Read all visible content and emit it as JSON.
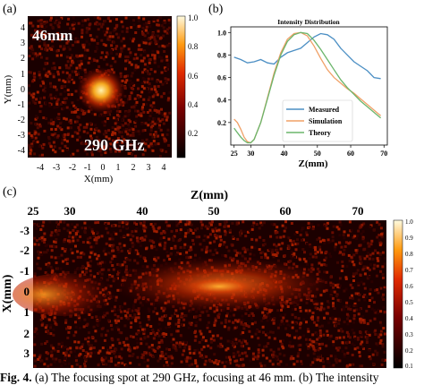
{
  "panels": {
    "a": {
      "label": "(a)",
      "distance": "46mm",
      "frequency": "290 GHz",
      "xlabel": "X(mm)",
      "ylabel": "Y(mm)",
      "xticks": [
        "-4",
        "-3",
        "-2",
        "-1",
        "0",
        "1",
        "2",
        "3",
        "4"
      ],
      "yticks": [
        "4",
        "3",
        "2",
        "1",
        "0",
        "-1",
        "-2",
        "-3",
        "-4"
      ],
      "colorbar_ticks": [
        "1.0",
        "0.8",
        "0.6",
        "0.4",
        "0.2"
      ]
    },
    "b": {
      "label": "(b)"
    },
    "c": {
      "label": "(c)",
      "xlabel": "Z(mm)",
      "ylabel": "X(mm)",
      "xticks": [
        "25",
        "30",
        "40",
        "50",
        "60",
        "70"
      ],
      "yticks": [
        "-3",
        "-2",
        "-1",
        "0",
        "1",
        "2",
        "3"
      ],
      "colorbar_ticks": [
        "1.0",
        "0.9",
        "0.8",
        "0.7",
        "0.6",
        "0.5",
        "0.4",
        "0.3",
        "0.2",
        "0.1"
      ]
    }
  },
  "chart_data": {
    "type": "line",
    "title": "Intensity Distribution",
    "xlabel": "Z(mm)",
    "ylabel": "",
    "xlim": [
      24,
      71
    ],
    "ylim": [
      0,
      1.05
    ],
    "xticks": [
      25,
      30,
      40,
      50,
      60,
      70
    ],
    "yticks": [
      0.2,
      0.4,
      0.6,
      0.8,
      1.0
    ],
    "legend_position": "bottom-right",
    "series": [
      {
        "name": "Measured",
        "color": "#4c8fc4",
        "x": [
          25,
          27,
          29,
          31,
          33,
          35,
          37,
          39,
          41,
          43,
          45,
          47,
          49,
          51,
          53,
          55,
          57,
          59,
          61,
          63,
          65,
          67,
          69
        ],
        "y": [
          0.78,
          0.76,
          0.73,
          0.74,
          0.76,
          0.73,
          0.72,
          0.78,
          0.82,
          0.84,
          0.86,
          0.91,
          0.96,
          0.99,
          0.98,
          0.94,
          0.86,
          0.8,
          0.74,
          0.7,
          0.66,
          0.6,
          0.59
        ]
      },
      {
        "name": "Simulation",
        "color": "#f0a066",
        "x": [
          25,
          26,
          27,
          28,
          29,
          30,
          31,
          33,
          35,
          37,
          39,
          41,
          43,
          45,
          47,
          49,
          51,
          53,
          55,
          57,
          59,
          61,
          63,
          65,
          67,
          69
        ],
        "y": [
          0.23,
          0.2,
          0.14,
          0.07,
          0.03,
          0.02,
          0.05,
          0.2,
          0.42,
          0.64,
          0.82,
          0.94,
          0.99,
          1.0,
          0.97,
          0.88,
          0.77,
          0.67,
          0.6,
          0.55,
          0.5,
          0.46,
          0.41,
          0.36,
          0.31,
          0.26
        ]
      },
      {
        "name": "Theory",
        "color": "#6bb56b",
        "x": [
          25,
          26,
          27,
          28,
          29,
          30,
          31,
          33,
          35,
          37,
          39,
          41,
          43,
          45,
          47,
          49,
          51,
          53,
          55,
          57,
          59,
          61,
          63,
          65,
          67,
          69
        ],
        "y": [
          0.15,
          0.11,
          0.07,
          0.04,
          0.02,
          0.02,
          0.05,
          0.2,
          0.41,
          0.62,
          0.8,
          0.92,
          0.98,
          1.0,
          0.99,
          0.93,
          0.85,
          0.76,
          0.67,
          0.58,
          0.51,
          0.45,
          0.39,
          0.34,
          0.29,
          0.24
        ]
      }
    ]
  },
  "caption": {
    "bold": "Fig. 4.",
    "text": " (a) The focusing spot at 290 GHz, focusing at 46 mm. (b) The intensity"
  }
}
